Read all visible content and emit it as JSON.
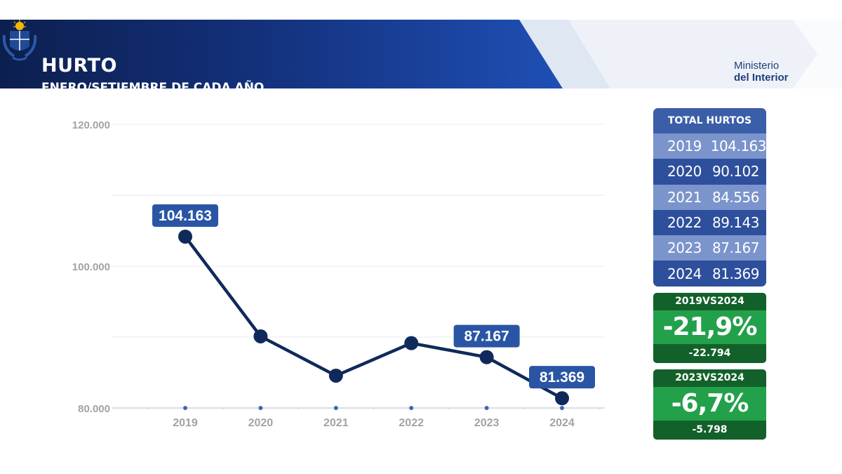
{
  "header": {
    "title": "HURTO",
    "subtitle": "ENERO/SETIEMBRE DE CADA AÑO",
    "org_line1": "Ministerio",
    "org_line2": "del Interior",
    "logo_icon": "uruguay-coat-of-arms-icon"
  },
  "colors": {
    "header_dark": "#0c1f4f",
    "header_blue": "#1a47a8",
    "line": "#0f2a5a",
    "label_bg": "#2a55a5",
    "table_dark": "#2d4f9c",
    "table_light": "#7b94cc",
    "green_dark": "#13612a",
    "green": "#23a04a"
  },
  "chart_data": {
    "type": "line",
    "categories": [
      "2019",
      "2020",
      "2021",
      "2022",
      "2023",
      "2024"
    ],
    "values": [
      104163,
      90102,
      84556,
      89143,
      87167,
      81369
    ],
    "labeled_points": [
      {
        "index": 0,
        "label": "104.163"
      },
      {
        "index": 4,
        "label": "87.167"
      },
      {
        "index": 5,
        "label": "81.369"
      }
    ],
    "yticks": [
      {
        "value": 80000,
        "label": "80.000"
      },
      {
        "value": 100000,
        "label": "100.000"
      },
      {
        "value": 120000,
        "label": "120.000"
      }
    ],
    "ylim": [
      80000,
      120000
    ],
    "gridlines": [
      80000,
      90000,
      100000,
      110000,
      120000
    ],
    "grid": true,
    "title": "",
    "xlabel": "",
    "ylabel": ""
  },
  "totals": {
    "title": "TOTAL HURTOS",
    "rows": [
      {
        "year": "2019",
        "value": "104.163"
      },
      {
        "year": "2020",
        "value": "90.102"
      },
      {
        "year": "2021",
        "value": "84.556"
      },
      {
        "year": "2022",
        "value": "89.143"
      },
      {
        "year": "2023",
        "value": "87.167"
      },
      {
        "year": "2024",
        "value": "81.369"
      }
    ]
  },
  "comparisons": [
    {
      "title": "2019VS2024",
      "percent": "-21,9%",
      "diff": "-22.794"
    },
    {
      "title": "2023VS2024",
      "percent": "-6,7%",
      "diff": "-5.798"
    }
  ]
}
